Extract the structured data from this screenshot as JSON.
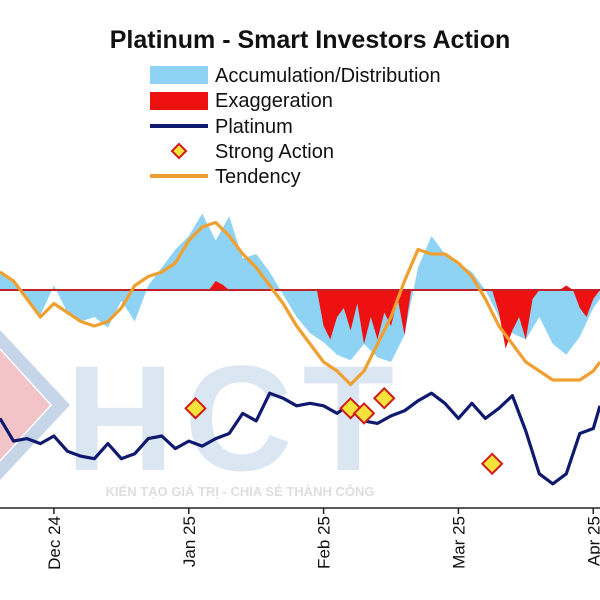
{
  "chart_data": {
    "type": "line",
    "title": "Platinum - Smart Investors Action",
    "legend": {
      "placement": "top",
      "entries": [
        {
          "label": "Accumulation/Distribution",
          "symbol": "area",
          "color": "#8fd3f4"
        },
        {
          "label": "Exaggeration",
          "symbol": "area",
          "color": "#ee1111"
        },
        {
          "label": "Platinum",
          "symbol": "line",
          "color": "#0f1a6e"
        },
        {
          "label": "Strong Action",
          "symbol": "diamond",
          "color": "#f5e23a",
          "edge": "#d41a1a"
        },
        {
          "label": "Tendency",
          "symbol": "line",
          "color": "#f0a030"
        }
      ]
    },
    "x_tick_labels": [
      "Dec 24",
      "Jan 25",
      "Feb 25",
      "Mar 25",
      "Apr 25"
    ],
    "x_tick_positions": [
      5,
      25,
      45,
      65,
      85
    ],
    "x_range": [
      -3,
      86
    ],
    "ranges": {
      "platinum": [
        0,
        100
      ],
      "indicator": [
        -100,
        100
      ]
    },
    "grid": false,
    "series": [
      {
        "name": "Platinum",
        "x": [
          -3,
          -1,
          1,
          3,
          5,
          7,
          9,
          11,
          13,
          15,
          17,
          19,
          21,
          23,
          25,
          27,
          29,
          31,
          33,
          35,
          37,
          39,
          41,
          43,
          45,
          47,
          49,
          51,
          53,
          55,
          57,
          59,
          61,
          63,
          65,
          67,
          69,
          71,
          73,
          75,
          77,
          79,
          81,
          83,
          85,
          86
        ],
        "values": [
          60,
          42,
          44,
          40,
          46,
          34,
          30,
          28,
          40,
          28,
          32,
          44,
          46,
          36,
          42,
          38,
          44,
          48,
          64,
          58,
          80,
          76,
          70,
          72,
          70,
          64,
          72,
          58,
          56,
          62,
          66,
          74,
          80,
          72,
          60,
          72,
          60,
          68,
          78,
          50,
          16,
          8,
          16,
          48,
          52,
          70
        ]
      },
      {
        "name": "Accumulation/Distribution",
        "x": [
          -3,
          -1,
          1,
          3,
          5,
          7,
          9,
          11,
          13,
          15,
          17,
          19,
          21,
          23,
          25,
          27,
          29,
          31,
          33,
          35,
          37,
          39,
          41,
          43,
          45,
          47,
          49,
          51,
          53,
          55,
          57,
          59,
          61,
          63,
          65,
          67,
          69,
          71,
          73,
          75,
          77,
          79,
          81,
          83,
          85,
          86
        ],
        "values": [
          20,
          8,
          -10,
          -28,
          5,
          -25,
          -35,
          -30,
          -42,
          -12,
          -35,
          5,
          25,
          45,
          60,
          85,
          55,
          82,
          35,
          40,
          20,
          -5,
          -30,
          -48,
          -58,
          -72,
          -78,
          -60,
          -75,
          -80,
          -50,
          25,
          60,
          40,
          30,
          20,
          0,
          -30,
          -48,
          -55,
          -30,
          -60,
          -72,
          -52,
          -20,
          -10
        ]
      },
      {
        "name": "Exaggeration",
        "x": [
          21,
          22,
          23,
          24,
          25,
          26,
          27,
          28,
          29,
          30,
          31,
          32,
          33,
          34,
          35,
          36,
          37,
          38,
          39,
          40,
          41,
          42,
          43,
          44,
          45,
          46,
          47,
          48,
          49,
          50,
          51,
          52,
          53,
          54,
          55,
          56,
          57,
          58,
          59,
          60,
          61,
          62,
          63,
          64,
          65,
          66,
          67,
          68,
          69,
          70,
          71,
          72,
          73,
          74,
          75,
          76,
          77,
          78,
          79,
          80,
          81,
          82,
          83,
          84,
          85,
          86
        ],
        "values": [
          0,
          0,
          0,
          0,
          0,
          0,
          0,
          0,
          10,
          6,
          0,
          0,
          0,
          0,
          0,
          0,
          0,
          0,
          0,
          0,
          0,
          0,
          0,
          0,
          -40,
          -55,
          -30,
          -20,
          -45,
          -15,
          -60,
          -30,
          -55,
          -25,
          -40,
          -10,
          -50,
          0,
          0,
          0,
          0,
          0,
          0,
          0,
          0,
          0,
          0,
          0,
          0,
          0,
          -25,
          -65,
          -45,
          -30,
          -55,
          -10,
          0,
          0,
          0,
          0,
          5,
          0,
          -20,
          -30,
          -10,
          0
        ]
      },
      {
        "name": "Tendency",
        "x": [
          -3,
          -1,
          1,
          3,
          5,
          7,
          9,
          11,
          13,
          15,
          17,
          19,
          21,
          23,
          25,
          27,
          29,
          31,
          33,
          35,
          37,
          39,
          41,
          43,
          45,
          47,
          49,
          51,
          53,
          55,
          57,
          59,
          61,
          63,
          65,
          67,
          69,
          71,
          73,
          75,
          77,
          79,
          81,
          83,
          85,
          86
        ],
        "values": [
          20,
          10,
          -10,
          -30,
          -15,
          -25,
          -35,
          -40,
          -35,
          -20,
          5,
          15,
          20,
          30,
          55,
          70,
          75,
          60,
          40,
          25,
          5,
          -15,
          -40,
          -60,
          -80,
          -90,
          -105,
          -90,
          -60,
          -30,
          10,
          45,
          40,
          40,
          30,
          15,
          -10,
          -40,
          -60,
          -80,
          -90,
          -100,
          -100,
          -100,
          -90,
          -80
        ]
      },
      {
        "name": "Strong Action",
        "x": [
          26,
          49,
          51,
          54,
          70
        ],
        "values": [
          68,
          68,
          64,
          76,
          24
        ]
      }
    ]
  },
  "watermark": {
    "logo_text": "HCT",
    "slogan": "KIẾN TẠO GIÁ TRỊ - CHIA SẺ THÀNH CÔNG"
  }
}
